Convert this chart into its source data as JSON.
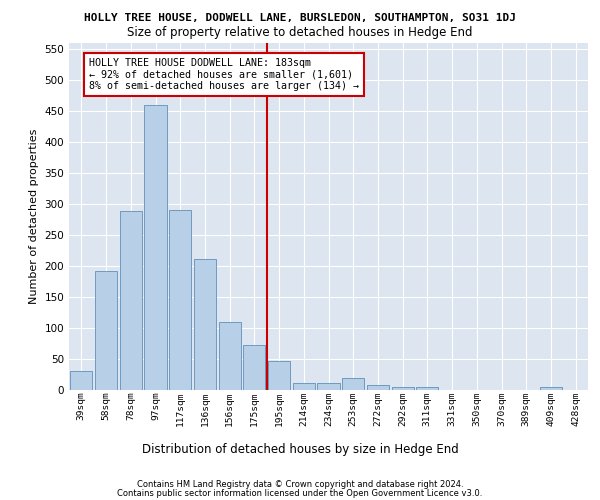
{
  "title": "HOLLY TREE HOUSE, DODWELL LANE, BURSLEDON, SOUTHAMPTON, SO31 1DJ",
  "subtitle": "Size of property relative to detached houses in Hedge End",
  "dist_label": "Distribution of detached houses by size in Hedge End",
  "ylabel": "Number of detached properties",
  "categories": [
    "39sqm",
    "58sqm",
    "78sqm",
    "97sqm",
    "117sqm",
    "136sqm",
    "156sqm",
    "175sqm",
    "195sqm",
    "214sqm",
    "234sqm",
    "253sqm",
    "272sqm",
    "292sqm",
    "311sqm",
    "331sqm",
    "350sqm",
    "370sqm",
    "389sqm",
    "409sqm",
    "428sqm"
  ],
  "values": [
    30,
    191,
    289,
    460,
    290,
    211,
    109,
    73,
    46,
    12,
    12,
    20,
    8,
    5,
    5,
    0,
    0,
    0,
    0,
    5,
    0
  ],
  "bar_color": "#b8cfe8",
  "bar_edge_color": "#6090b8",
  "vline_pos": 7.5,
  "vline_color": "#cc0000",
  "annotation_text": "HOLLY TREE HOUSE DODWELL LANE: 183sqm\n← 92% of detached houses are smaller (1,601)\n8% of semi-detached houses are larger (134) →",
  "annotation_box_facecolor": "#ffffff",
  "annotation_box_edgecolor": "#cc0000",
  "ylim": [
    0,
    560
  ],
  "yticks": [
    0,
    50,
    100,
    150,
    200,
    250,
    300,
    350,
    400,
    450,
    500,
    550
  ],
  "bg_color": "#dde5f0",
  "grid_color": "#ffffff",
  "footer1": "Contains HM Land Registry data © Crown copyright and database right 2024.",
  "footer2": "Contains public sector information licensed under the Open Government Licence v3.0."
}
